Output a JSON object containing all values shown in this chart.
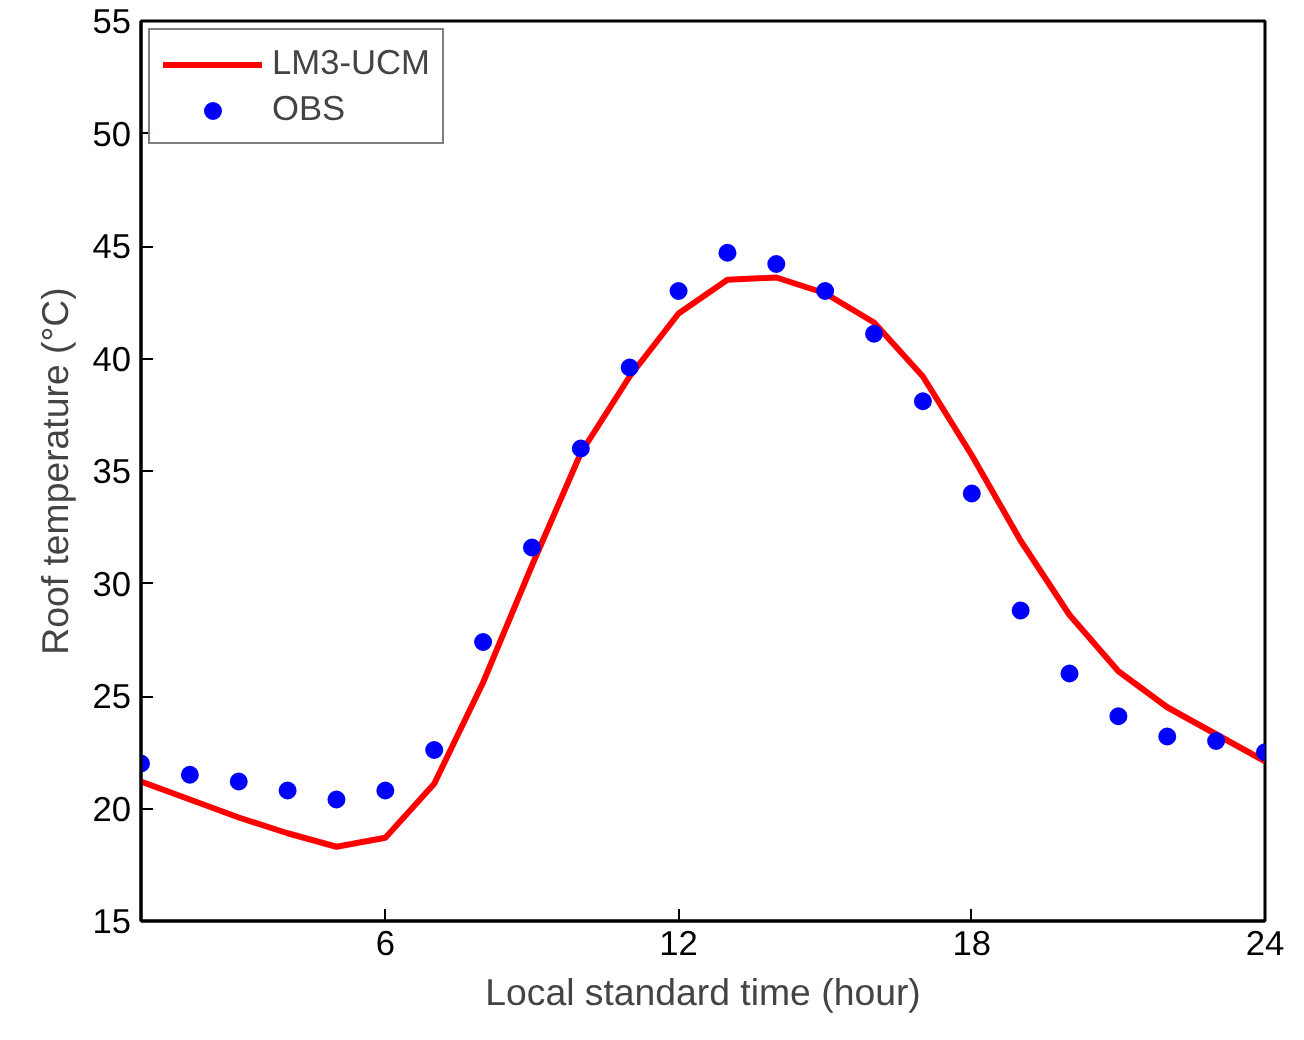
{
  "chart_data": {
    "type": "line",
    "xlabel": "Local standard time (hour)",
    "ylabel": "Roof temperature (°C)",
    "xlim": [
      1,
      24
    ],
    "ylim": [
      15,
      55
    ],
    "xticks": [
      6,
      12,
      18,
      24
    ],
    "yticks": [
      15,
      20,
      25,
      30,
      35,
      40,
      45,
      50,
      55
    ],
    "grid": false,
    "legend": "top left",
    "x": [
      1,
      2,
      3,
      4,
      5,
      6,
      7,
      8,
      9,
      10,
      11,
      12,
      13,
      14,
      15,
      16,
      17,
      18,
      19,
      20,
      21,
      22,
      23,
      24
    ],
    "series": [
      {
        "name": "LM3-UCM",
        "color": "#ff0000",
        "marker": "none",
        "line_style": "solid",
        "values": [
          21.2,
          20.4,
          19.6,
          18.9,
          18.3,
          18.7,
          21.1,
          25.6,
          30.8,
          35.8,
          39.2,
          42.0,
          43.5,
          43.6,
          42.9,
          41.6,
          39.2,
          35.7,
          31.9,
          28.6,
          26.1,
          24.5,
          23.3,
          22.1
        ]
      },
      {
        "name": "OBS",
        "type": "scatter",
        "color": "#0000ff",
        "marker": "circle",
        "values": [
          22.0,
          21.5,
          21.2,
          20.8,
          20.4,
          20.8,
          22.6,
          27.4,
          31.6,
          36.0,
          39.6,
          43.0,
          44.7,
          44.2,
          43.0,
          41.1,
          38.1,
          34.0,
          28.8,
          26.0,
          24.1,
          23.2,
          23.0,
          22.5
        ]
      }
    ]
  }
}
